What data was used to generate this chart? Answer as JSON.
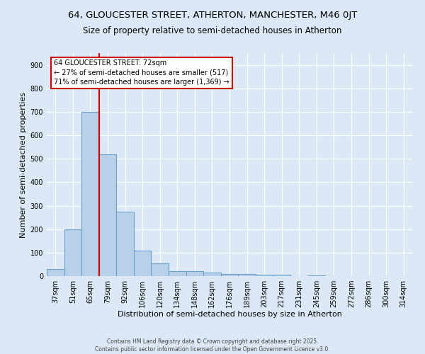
{
  "title_line1": "64, GLOUCESTER STREET, ATHERTON, MANCHESTER, M46 0JT",
  "title_line2": "Size of property relative to semi-detached houses in Atherton",
  "xlabel": "Distribution of semi-detached houses by size in Atherton",
  "ylabel": "Number of semi-detached properties",
  "categories": [
    "37sqm",
    "51sqm",
    "65sqm",
    "79sqm",
    "92sqm",
    "106sqm",
    "120sqm",
    "134sqm",
    "148sqm",
    "162sqm",
    "176sqm",
    "189sqm",
    "203sqm",
    "217sqm",
    "231sqm",
    "245sqm",
    "259sqm",
    "272sqm",
    "286sqm",
    "300sqm",
    "314sqm"
  ],
  "values": [
    30,
    200,
    700,
    520,
    275,
    110,
    55,
    22,
    20,
    15,
    10,
    8,
    5,
    5,
    0,
    4,
    0,
    0,
    0,
    0,
    0
  ],
  "bar_color": "#b8d0e8",
  "bar_edge_color": "#6aa0cc",
  "red_line_x": 2.5,
  "annotation_text": "64 GLOUCESTER STREET: 72sqm\n← 27% of semi-detached houses are smaller (517)\n71% of semi-detached houses are larger (1,369) →",
  "annotation_box_color": "#ffffff",
  "annotation_box_edge": "#cc0000",
  "ylim": [
    0,
    950
  ],
  "yticks": [
    0,
    100,
    200,
    300,
    400,
    500,
    600,
    700,
    800,
    900
  ],
  "background_color": "#dce8f5",
  "grid_color": "#ffffff",
  "footer_text": "Contains HM Land Registry data © Crown copyright and database right 2025.\nContains public sector information licensed under the Open Government Licence v3.0.",
  "title_fontsize": 9.5,
  "subtitle_fontsize": 8.5,
  "axis_fontsize": 8,
  "tick_fontsize": 7,
  "annot_fontsize": 7
}
